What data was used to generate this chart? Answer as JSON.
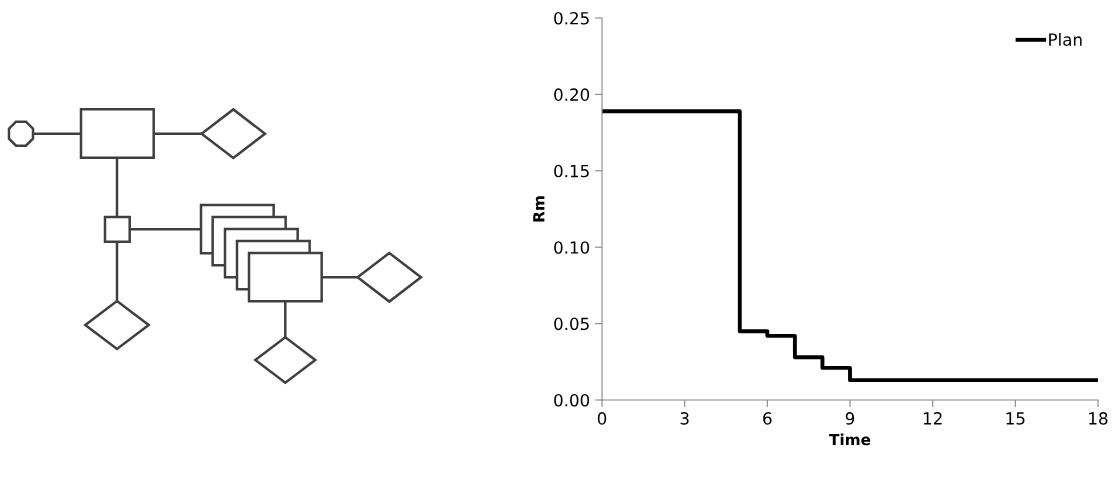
{
  "chart_data": {
    "type": "step",
    "xlabel": "Time",
    "ylabel": "Rm",
    "x": [
      0,
      5,
      6,
      7,
      8,
      9,
      18
    ],
    "series": [
      {
        "name": "Plan",
        "color": "#000000",
        "values": [
          0.189,
          0.045,
          0.042,
          0.028,
          0.021,
          0.013,
          0.013
        ]
      }
    ],
    "xlim": [
      0,
      18
    ],
    "xticks": [
      0,
      3,
      6,
      9,
      12,
      15,
      18
    ],
    "ylim": [
      0,
      0.25
    ],
    "yticks": [
      {
        "value": 0,
        "label": "0.00"
      },
      {
        "value": 0.05,
        "label": "0.05"
      },
      {
        "value": 0.1,
        "label": "0.10"
      },
      {
        "value": 0.15,
        "label": "0.15"
      },
      {
        "value": 0.2,
        "label": "0.20"
      },
      {
        "value": 0.25,
        "label": "0.25"
      }
    ],
    "legend": "top right",
    "grid": false
  }
}
